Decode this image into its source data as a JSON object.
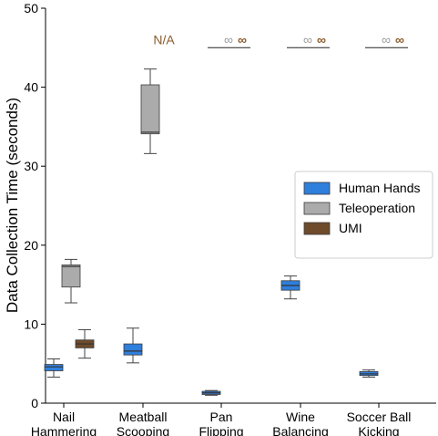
{
  "chart_data": {
    "type": "box",
    "ylabel": "Data Collection Time (seconds)",
    "ylim": [
      0,
      50
    ],
    "yticks": [
      "0",
      "10",
      "20",
      "30",
      "40",
      "50"
    ],
    "categories": [
      "Nail\nHammering",
      "Meatball\nScooping",
      "Pan\nFlipping",
      "Wine\nBalancing",
      "Soccer Ball\nKicking"
    ],
    "series": [
      {
        "name": "Human Hands",
        "color": "#2f7fdc",
        "boxes": [
          {
            "category": 0,
            "whisker_low": 3.3,
            "q1": 4.1,
            "median": 4.6,
            "q3": 4.9,
            "whisker_high": 5.6
          },
          {
            "category": 1,
            "whisker_low": 5.1,
            "q1": 6.1,
            "median": 6.6,
            "q3": 7.5,
            "whisker_high": 9.5
          },
          {
            "category": 2,
            "whisker_low": 1.0,
            "q1": 1.1,
            "median": 1.3,
            "q3": 1.5,
            "whisker_high": 1.6
          },
          {
            "category": 3,
            "whisker_low": 13.2,
            "q1": 14.3,
            "median": 14.9,
            "q3": 15.5,
            "whisker_high": 16.1
          },
          {
            "category": 4,
            "whisker_low": 3.3,
            "q1": 3.5,
            "median": 3.7,
            "q3": 4.0,
            "whisker_high": 4.2
          }
        ]
      },
      {
        "name": "Teleoperation",
        "color": "#ababab",
        "boxes": [
          {
            "category": 0,
            "whisker_low": 12.7,
            "q1": 14.7,
            "median": 17.3,
            "q3": 17.5,
            "whisker_high": 18.2
          },
          {
            "category": 1,
            "whisker_low": 31.6,
            "q1": 34.1,
            "median": 34.3,
            "q3": 40.3,
            "whisker_high": 42.3
          }
        ]
      },
      {
        "name": "UMI",
        "color": "#6e4b2b",
        "boxes": [
          {
            "category": 0,
            "whisker_low": 5.7,
            "q1": 7.0,
            "median": 7.5,
            "q3": 8.0,
            "whisker_high": 9.3
          }
        ]
      }
    ],
    "annotations": [
      {
        "category": 1,
        "series": "UMI",
        "text": "N/A",
        "y": 46.0
      },
      {
        "category": 2,
        "series": "Teleoperation",
        "text": "∞",
        "y": 46.0
      },
      {
        "category": 2,
        "series": "UMI",
        "text": "∞",
        "y": 46.0
      },
      {
        "category": 3,
        "series": "Teleoperation",
        "text": "∞",
        "y": 46.0
      },
      {
        "category": 3,
        "series": "UMI",
        "text": "∞",
        "y": 46.0
      },
      {
        "category": 4,
        "series": "Teleoperation",
        "text": "∞",
        "y": 46.0
      },
      {
        "category": 4,
        "series": "UMI",
        "text": "∞",
        "y": 46.0
      }
    ],
    "infinity_lines": [
      {
        "category": 2,
        "y": 45.0
      },
      {
        "category": 3,
        "y": 45.0
      },
      {
        "category": 4,
        "y": 45.0
      }
    ],
    "legend_position": "center-right",
    "annotation_colors": {
      "teleop": "#9a9a9a",
      "umi": "#8a5a2b"
    }
  }
}
